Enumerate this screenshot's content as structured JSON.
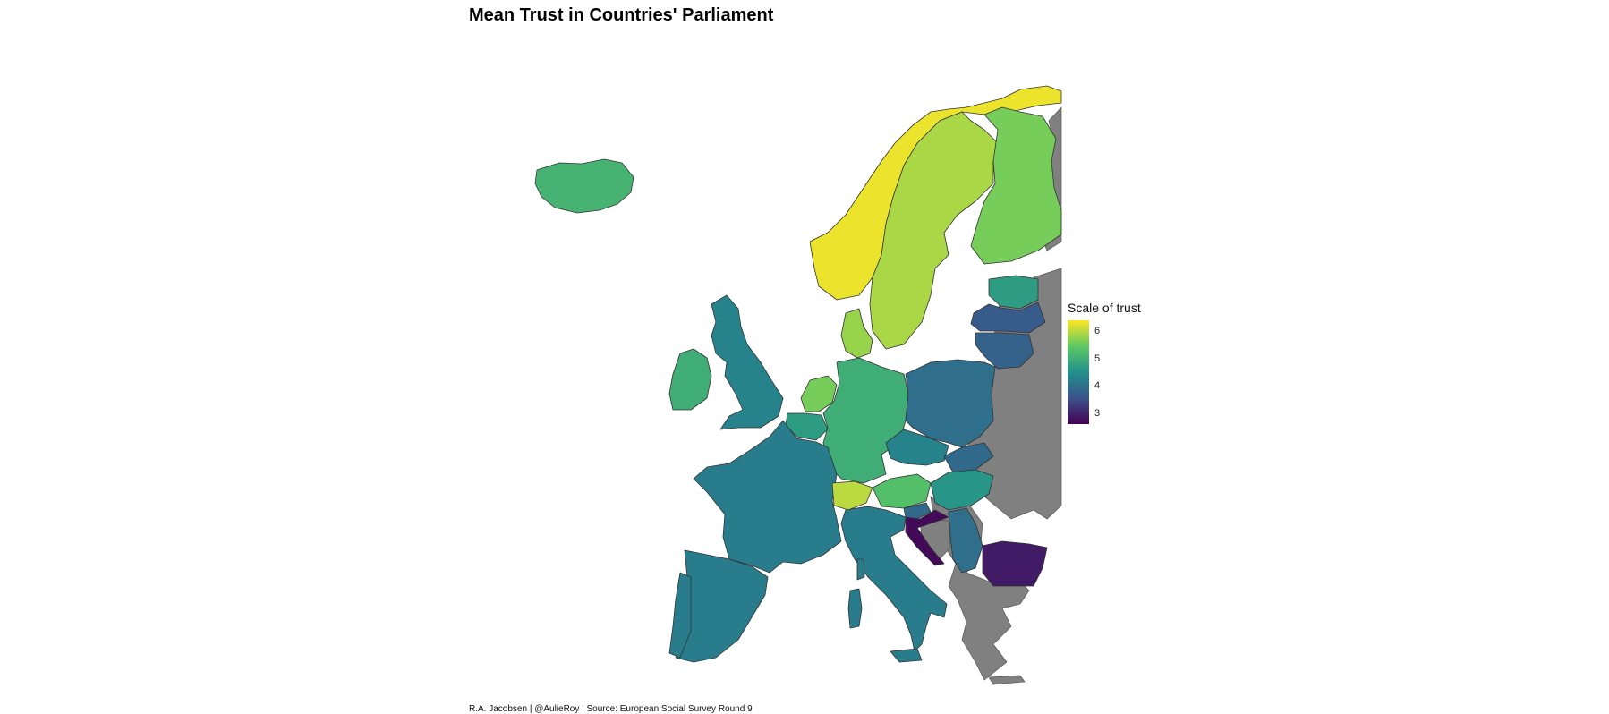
{
  "title": "Mean Trust in Countries' Parliament",
  "caption": "R.A. Jacobsen | @AulieRoy | Source: European Social Survey Round 9",
  "legend": {
    "title": "Scale of trust",
    "min": 2.6,
    "max": 6.4,
    "ticks": [
      {
        "value": 6,
        "label": "6"
      },
      {
        "value": 5,
        "label": "5"
      },
      {
        "value": 4,
        "label": "4"
      },
      {
        "value": 3,
        "label": "3"
      }
    ],
    "colors": [
      "#440154",
      "#3b528b",
      "#21908c",
      "#5dc863",
      "#fde725"
    ]
  },
  "regions": [
    {
      "id": "norway",
      "value": 6.3
    },
    {
      "id": "sweden",
      "value": 5.9
    },
    {
      "id": "finland",
      "value": 5.6
    },
    {
      "id": "iceland",
      "value": 5.1
    },
    {
      "id": "estonia",
      "value": 4.7
    },
    {
      "id": "latvia",
      "value": 3.7
    },
    {
      "id": "lithuania",
      "value": 3.8
    },
    {
      "id": "denmark",
      "value": 5.8
    },
    {
      "id": "netherlands",
      "value": 5.6
    },
    {
      "id": "belgium",
      "value": 4.7
    },
    {
      "id": "germany",
      "value": 5.0
    },
    {
      "id": "poland",
      "value": 4.0
    },
    {
      "id": "ireland",
      "value": 5.0
    },
    {
      "id": "uk",
      "value": 4.3
    },
    {
      "id": "france",
      "value": 4.2
    },
    {
      "id": "spain",
      "value": 4.2
    },
    {
      "id": "portugal",
      "value": 4.2
    },
    {
      "id": "switzerland",
      "value": 6.0
    },
    {
      "id": "austria",
      "value": 5.3
    },
    {
      "id": "czechia",
      "value": 4.3
    },
    {
      "id": "slovakia",
      "value": 3.9
    },
    {
      "id": "hungary",
      "value": 4.6
    },
    {
      "id": "slovenia",
      "value": 3.9
    },
    {
      "id": "croatia",
      "value": 2.7
    },
    {
      "id": "serbia",
      "value": 4.0
    },
    {
      "id": "bulgaria",
      "value": 2.9
    },
    {
      "id": "italy",
      "value": 4.2
    },
    {
      "id": "sardinia",
      "value": 4.2
    },
    {
      "id": "corsica",
      "value": 4.2
    },
    {
      "id": "sicily",
      "value": 4.2
    }
  ]
}
